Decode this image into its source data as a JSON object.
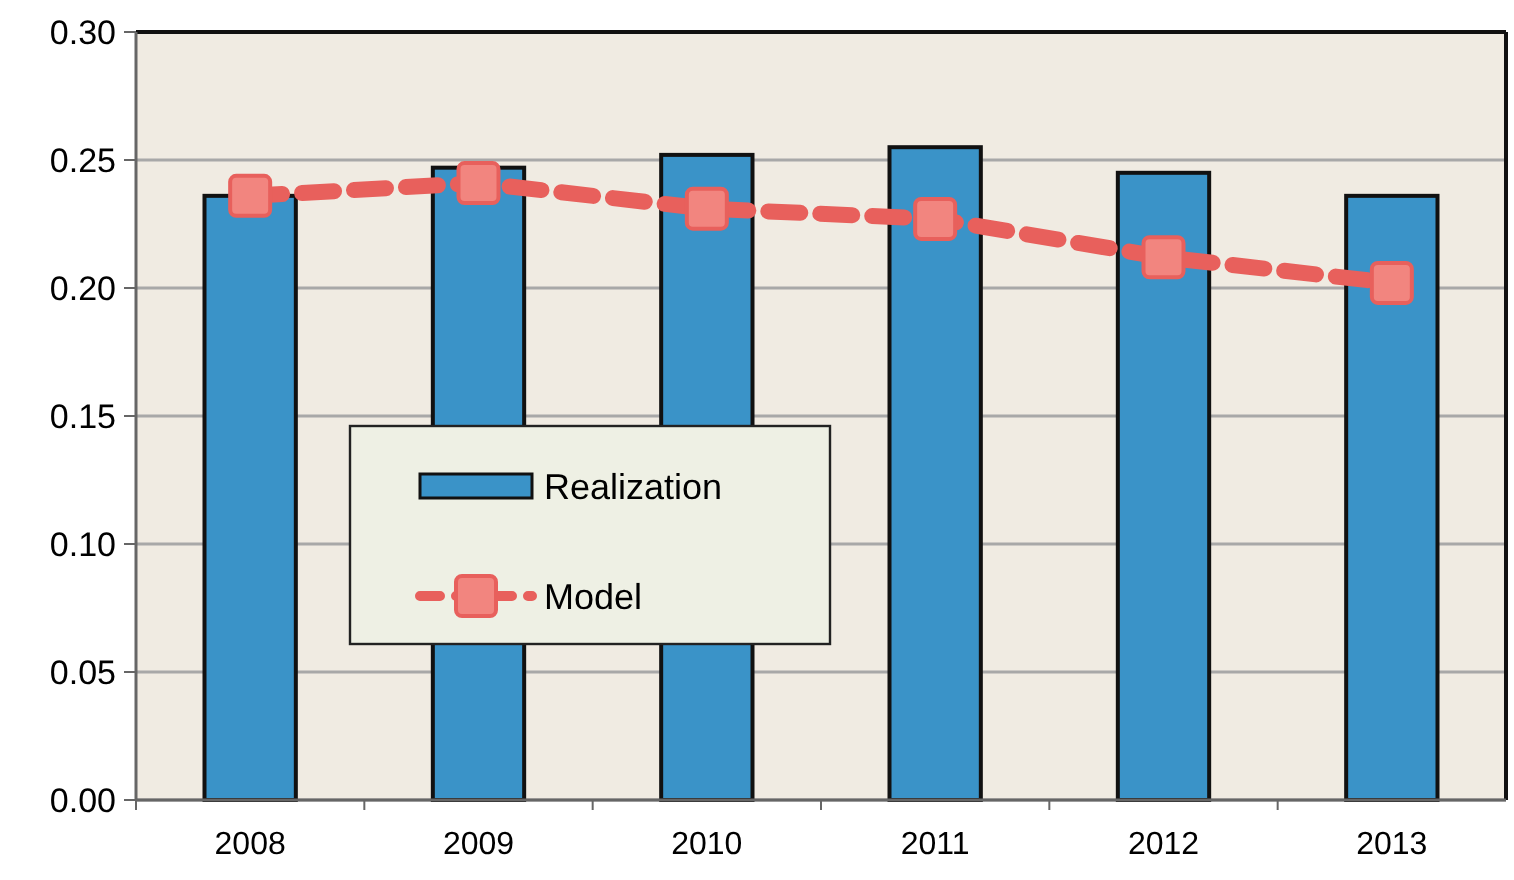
{
  "chart_data": {
    "type": "bar",
    "categories": [
      "2008",
      "2009",
      "2010",
      "2011",
      "2012",
      "2013"
    ],
    "series": [
      {
        "name": "Realization",
        "color": "#3a93c8",
        "values": [
          0.236,
          0.247,
          0.252,
          0.255,
          0.245,
          0.236
        ]
      },
      {
        "name": "Model",
        "type": "line",
        "color": "#e8605c",
        "values": [
          0.236,
          0.241,
          0.231,
          0.227,
          0.212,
          0.202
        ],
        "marker": "square",
        "line_style": "dashed"
      }
    ],
    "ylim": [
      0,
      0.3
    ],
    "yticks": [
      {
        "value": 0,
        "label": "0.00"
      },
      {
        "value": 0.05,
        "label": "0.05"
      },
      {
        "value": 0.1,
        "label": "0.10"
      },
      {
        "value": 0.15,
        "label": "0.15"
      },
      {
        "value": 0.2,
        "label": "0.20"
      },
      {
        "value": 0.25,
        "label": "0.25"
      },
      {
        "value": 0.3,
        "label": "0.30"
      }
    ],
    "grid": "y",
    "legend": "center"
  }
}
